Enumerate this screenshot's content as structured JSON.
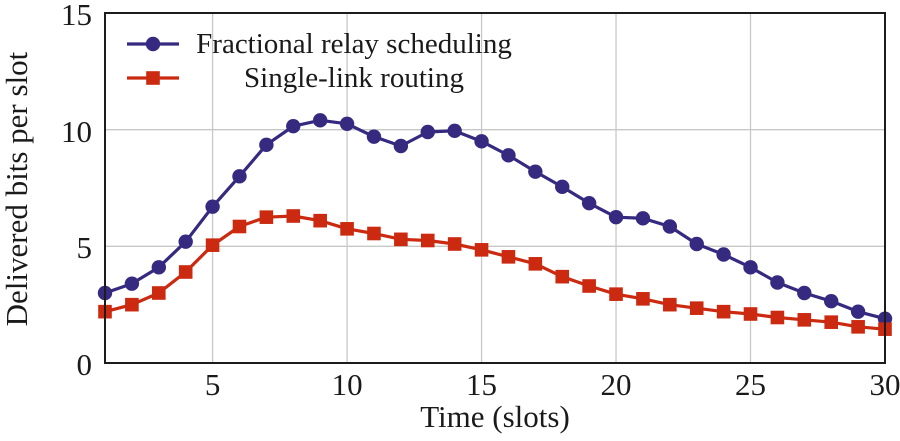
{
  "figure": {
    "background": "#ffffff"
  },
  "chart_data": {
    "type": "line",
    "title": "",
    "xlabel": "Time (slots)",
    "ylabel": "Delivered bits per slot",
    "x": [
      1,
      2,
      3,
      4,
      5,
      6,
      7,
      8,
      9,
      10,
      11,
      12,
      13,
      14,
      15,
      16,
      17,
      18,
      19,
      20,
      21,
      22,
      23,
      24,
      25,
      26,
      27,
      28,
      29,
      30
    ],
    "series": [
      {
        "name": "Fractional relay scheduling",
        "color": "#352a80",
        "marker": "circle",
        "values": [
          3.0,
          3.4,
          4.1,
          5.2,
          6.7,
          8.0,
          9.35,
          10.15,
          10.4,
          10.25,
          9.7,
          9.3,
          9.9,
          9.95,
          9.5,
          8.9,
          8.2,
          7.55,
          6.85,
          6.25,
          6.2,
          5.85,
          5.1,
          4.65,
          4.1,
          3.45,
          3.0,
          2.65,
          2.2,
          1.9
        ]
      },
      {
        "name": "Single-link routing",
        "color": "#cc2a10",
        "marker": "square",
        "values": [
          2.2,
          2.5,
          3.0,
          3.9,
          5.05,
          5.85,
          6.25,
          6.3,
          6.1,
          5.75,
          5.55,
          5.3,
          5.25,
          5.1,
          4.85,
          4.55,
          4.25,
          3.7,
          3.3,
          2.95,
          2.75,
          2.5,
          2.35,
          2.2,
          2.1,
          1.95,
          1.85,
          1.75,
          1.55,
          1.45
        ]
      }
    ],
    "xlim": [
      1,
      30
    ],
    "ylim": [
      0,
      15
    ],
    "xticks": [
      5,
      10,
      15,
      20,
      25,
      30
    ],
    "yticks": [
      0,
      5,
      10,
      15
    ],
    "grid": true,
    "grid_color": "#c8c8c8",
    "axis_color": "#1c1c1c",
    "text_color": "#1a1a1a",
    "legend_position": "top-left"
  }
}
